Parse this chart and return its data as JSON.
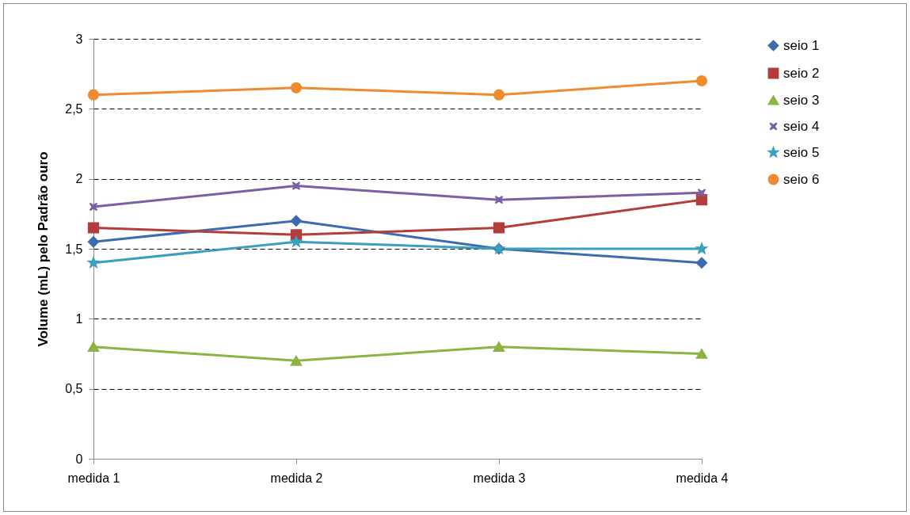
{
  "chart_data": {
    "type": "line",
    "ylabel": "Volume (mL) pelo Padrão ouro",
    "categories": [
      "medida 1",
      "medida 2",
      "medida 3",
      "medida 4"
    ],
    "ylim": [
      0,
      3
    ],
    "yticks": [
      0,
      {
        "value": 0.5,
        "label": "0,5"
      },
      1,
      {
        "value": 1.5,
        "label": "1,5"
      },
      2,
      {
        "value": 2.5,
        "label": "2,5"
      },
      3
    ],
    "grid": "y",
    "legend": "right",
    "line_style": "solid",
    "series": [
      {
        "name": "seio 1",
        "color": "#3c6bb0",
        "marker": "diamond",
        "values": [
          1.55,
          1.7,
          1.5,
          1.4
        ]
      },
      {
        "name": "seio 2",
        "color": "#b43c3a",
        "marker": "square",
        "values": [
          1.65,
          1.6,
          1.65,
          1.85
        ]
      },
      {
        "name": "seio 3",
        "color": "#8cb442",
        "marker": "triangle",
        "values": [
          0.8,
          0.7,
          0.8,
          0.75
        ]
      },
      {
        "name": "seio 4",
        "color": "#7b5ea3",
        "marker": "cross",
        "values": [
          1.8,
          1.95,
          1.85,
          1.9
        ]
      },
      {
        "name": "seio 5",
        "color": "#3aa0bd",
        "marker": "star",
        "values": [
          1.4,
          1.55,
          1.5,
          1.5
        ]
      },
      {
        "name": "seio 6",
        "color": "#f08a2e",
        "marker": "circle",
        "values": [
          2.6,
          2.65,
          2.6,
          2.7
        ]
      }
    ]
  }
}
